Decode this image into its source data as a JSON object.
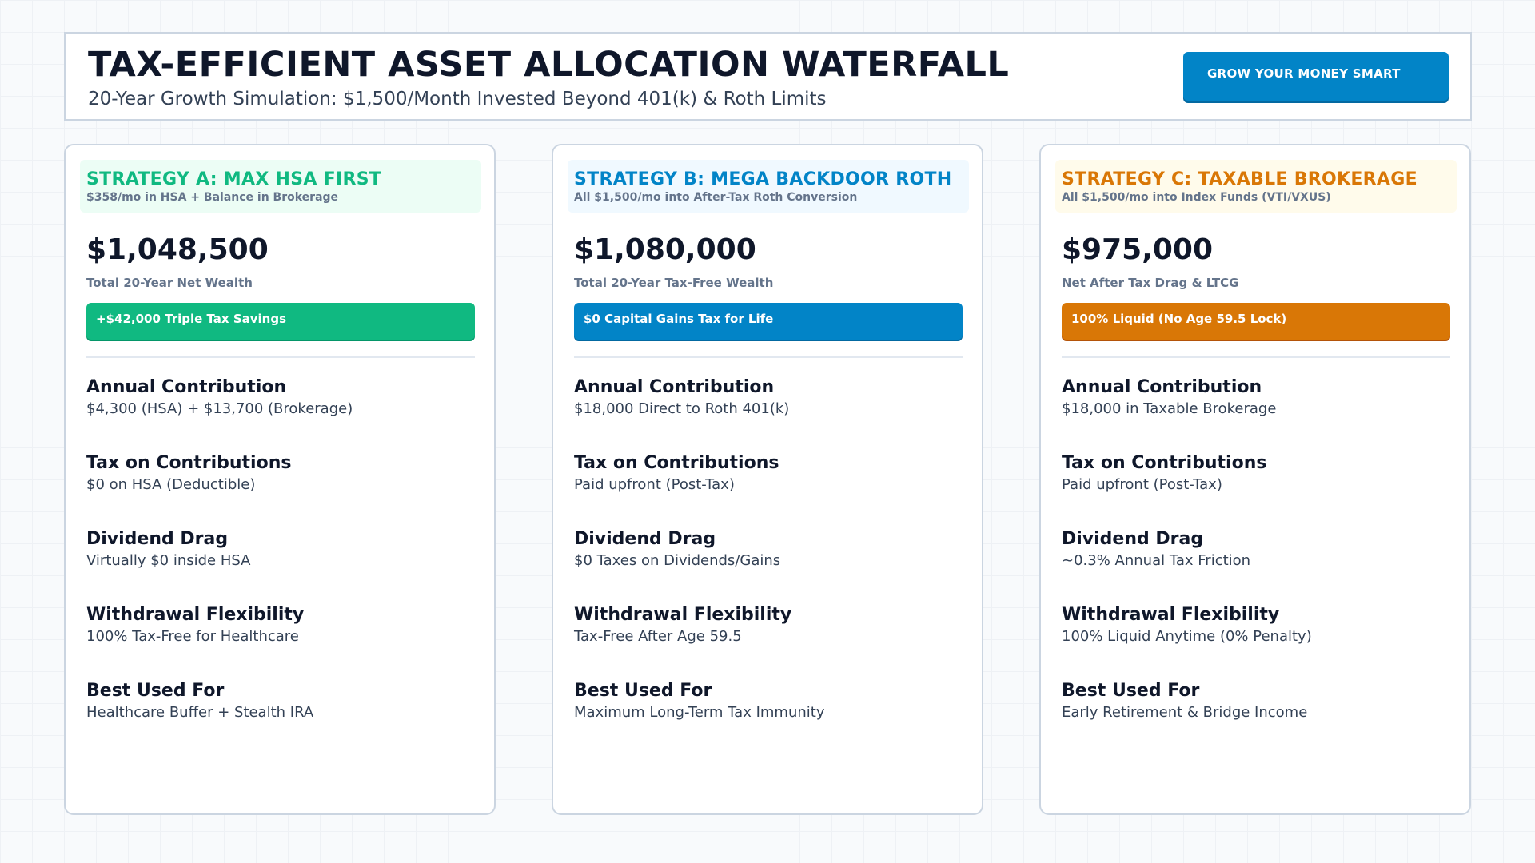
{
  "header": {
    "title": "TAX-EFFICIENT ASSET ALLOCATION WATERFALL",
    "subtitle": "20-Year Growth Simulation: $1,500/Month Invested Beyond 401(k) & Roth Limits",
    "cta_label": "GROW YOUR MONEY SMART"
  },
  "colors": {
    "strategy_a": "#10b981",
    "strategy_b": "#0284c7",
    "strategy_c": "#d97706"
  },
  "strategies": [
    {
      "title": "STRATEGY A: MAX HSA FIRST",
      "subtitle": "$358/mo in HSA + Balance in Brokerage",
      "value": "$1,048,500",
      "value_label": "Total 20-Year Net Wealth",
      "badge": "+$42,000 Triple Tax Savings",
      "metrics": [
        {
          "label": "Annual Contribution",
          "value": "$4,300 (HSA) + $13,700 (Brokerage)"
        },
        {
          "label": "Tax on Contributions",
          "value": "$0 on HSA (Deductible)"
        },
        {
          "label": "Dividend Drag",
          "value": "Virtually $0 inside HSA"
        },
        {
          "label": "Withdrawal Flexibility",
          "value": "100% Tax-Free for Healthcare"
        },
        {
          "label": "Best Used For",
          "value": "Healthcare Buffer + Stealth IRA"
        }
      ]
    },
    {
      "title": "STRATEGY B: MEGA BACKDOOR ROTH",
      "subtitle": "All $1,500/mo into After-Tax Roth Conversion",
      "value": "$1,080,000",
      "value_label": "Total 20-Year Tax-Free Wealth",
      "badge": "$0 Capital Gains Tax for Life",
      "metrics": [
        {
          "label": "Annual Contribution",
          "value": "$18,000 Direct to Roth 401(k)"
        },
        {
          "label": "Tax on Contributions",
          "value": "Paid upfront (Post-Tax)"
        },
        {
          "label": "Dividend Drag",
          "value": "$0 Taxes on Dividends/Gains"
        },
        {
          "label": "Withdrawal Flexibility",
          "value": "Tax-Free After Age 59.5"
        },
        {
          "label": "Best Used For",
          "value": "Maximum Long-Term Tax Immunity"
        }
      ]
    },
    {
      "title": "STRATEGY C: TAXABLE BROKERAGE",
      "subtitle": "All $1,500/mo into Index Funds (VTI/VXUS)",
      "value": "$975,000",
      "value_label": "Net After Tax Drag & LTCG",
      "badge": "100% Liquid (No Age 59.5 Lock)",
      "metrics": [
        {
          "label": "Annual Contribution",
          "value": "$18,000 in Taxable Brokerage"
        },
        {
          "label": "Tax on Contributions",
          "value": "Paid upfront (Post-Tax)"
        },
        {
          "label": "Dividend Drag",
          "value": "~0.3% Annual Tax Friction"
        },
        {
          "label": "Withdrawal Flexibility",
          "value": "100% Liquid Anytime (0% Penalty)"
        },
        {
          "label": "Best Used For",
          "value": "Early Retirement & Bridge Income"
        }
      ]
    }
  ]
}
